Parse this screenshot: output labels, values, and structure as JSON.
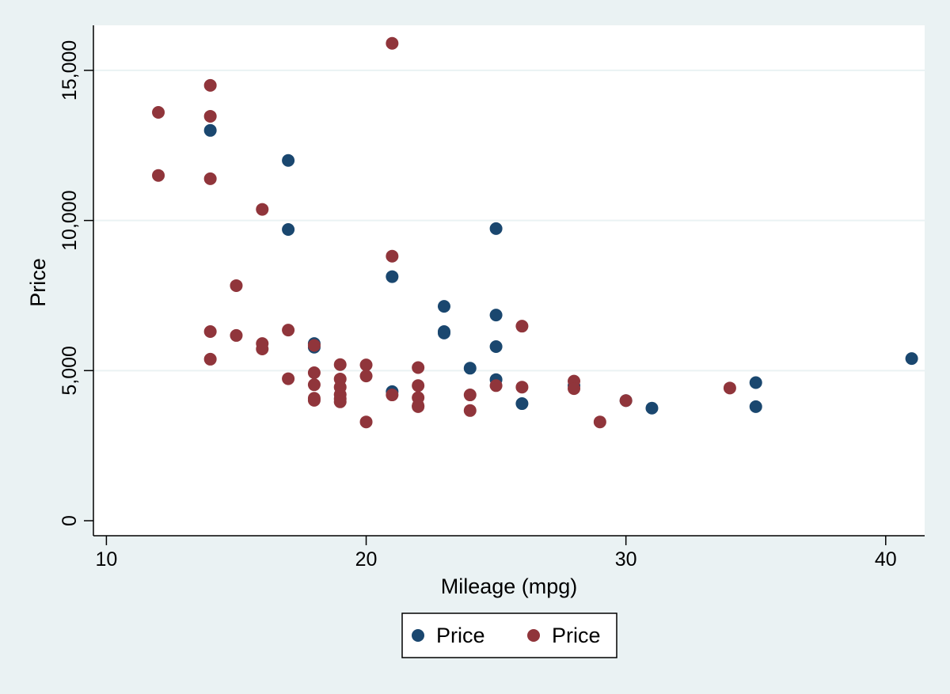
{
  "colors": {
    "page_background": "#eaf2f3",
    "plot_background": "#ffffff",
    "gridline": "#eaf2f3",
    "series_1": "#1a476f",
    "series_2": "#90353b"
  },
  "chart_data": {
    "type": "scatter",
    "title": "",
    "xlabel": "Mileage (mpg)",
    "ylabel": "Price",
    "xlim": [
      9.5,
      41.5
    ],
    "ylim": [
      -500,
      16500
    ],
    "xticks": [
      10,
      20,
      30,
      40
    ],
    "yticks": [
      0,
      5000,
      10000,
      15000
    ],
    "xtick_labels": [
      "10",
      "20",
      "30",
      "40"
    ],
    "ytick_labels": [
      "0",
      "5,000",
      "10,000",
      "15,000"
    ],
    "grid": "horizontal",
    "legend_position": "bottom",
    "legend": [
      "Price",
      "Price"
    ],
    "series": [
      {
        "name": "Price",
        "color": "#1a476f",
        "points": [
          [
            14,
            13000
          ],
          [
            17,
            12000
          ],
          [
            17,
            9700
          ],
          [
            25,
            9730
          ],
          [
            21,
            8130
          ],
          [
            23,
            7140
          ],
          [
            25,
            6850
          ],
          [
            23,
            6300
          ],
          [
            23,
            6250
          ],
          [
            18,
            5900
          ],
          [
            18,
            5780
          ],
          [
            25,
            5800
          ],
          [
            24,
            5080
          ],
          [
            25,
            4700
          ],
          [
            21,
            4300
          ],
          [
            26,
            3900
          ],
          [
            41,
            5400
          ],
          [
            35,
            4600
          ],
          [
            35,
            3800
          ],
          [
            31,
            3750
          ],
          [
            30,
            4000
          ],
          [
            28,
            4500
          ]
        ]
      },
      {
        "name": "Price",
        "color": "#90353b",
        "points": [
          [
            21,
            15900
          ],
          [
            14,
            14500
          ],
          [
            12,
            13600
          ],
          [
            14,
            13470
          ],
          [
            12,
            11500
          ],
          [
            14,
            11390
          ],
          [
            16,
            10370
          ],
          [
            21,
            8810
          ],
          [
            15,
            7830
          ],
          [
            14,
            6300
          ],
          [
            17,
            6350
          ],
          [
            15,
            6170
          ],
          [
            16,
            5900
          ],
          [
            16,
            5720
          ],
          [
            18,
            5840
          ],
          [
            14,
            5380
          ],
          [
            19,
            5200
          ],
          [
            20,
            5190
          ],
          [
            22,
            5100
          ],
          [
            18,
            4930
          ],
          [
            20,
            4820
          ],
          [
            17,
            4730
          ],
          [
            19,
            4720
          ],
          [
            18,
            4530
          ],
          [
            19,
            4450
          ],
          [
            22,
            4500
          ],
          [
            26,
            6480
          ],
          [
            25,
            4500
          ],
          [
            26,
            4450
          ],
          [
            28,
            4650
          ],
          [
            28,
            4400
          ],
          [
            34,
            4420
          ],
          [
            19,
            4200
          ],
          [
            21,
            4190
          ],
          [
            24,
            4190
          ],
          [
            18,
            4080
          ],
          [
            22,
            4100
          ],
          [
            18,
            4010
          ],
          [
            19,
            4060
          ],
          [
            19,
            3960
          ],
          [
            22,
            3830
          ],
          [
            22,
            3800
          ],
          [
            24,
            3670
          ],
          [
            20,
            3290
          ],
          [
            29,
            3290
          ],
          [
            30,
            4000
          ]
        ]
      }
    ]
  }
}
